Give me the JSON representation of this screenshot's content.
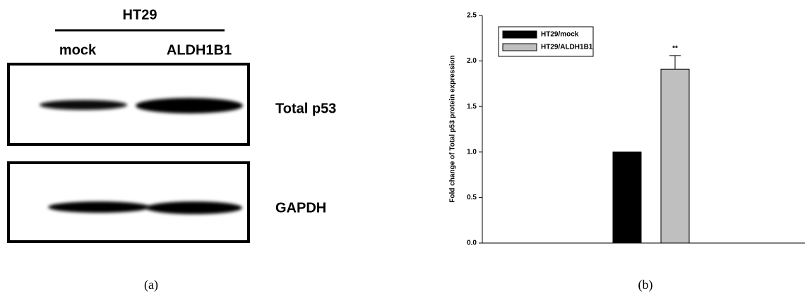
{
  "blot": {
    "cell_line": "HT29",
    "lanes": [
      "mock",
      "ALDH1B1"
    ],
    "proteins": [
      "Total p53",
      "GAPDH"
    ],
    "panel_label": "(a)"
  },
  "chart_data": {
    "type": "bar",
    "panel_label": "(b)",
    "y_label": "Fold change of Total p53 protein expression",
    "categories": [
      null
    ],
    "series": [
      {
        "name": "HT29/mock",
        "color": "#000000",
        "values": [
          1.0
        ]
      },
      {
        "name": "HT29/ALDH1B1",
        "color": "#bfbfbf",
        "values": [
          1.91
        ],
        "errors": [
          0.15
        ]
      }
    ],
    "annotation": "**",
    "ylim": [
      0,
      2.5
    ],
    "yticks": [
      {
        "value": 0,
        "label": "0.0"
      },
      0.5,
      {
        "value": 1,
        "label": "1.0"
      },
      1.5,
      {
        "value": 2,
        "label": "2.0"
      },
      2.5
    ],
    "legend": "upper-left"
  }
}
